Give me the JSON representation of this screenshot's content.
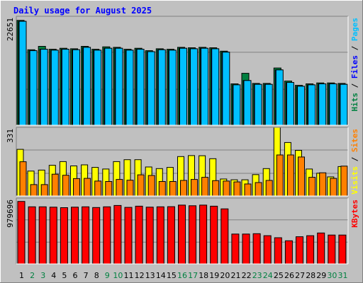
{
  "chart_data": {
    "type": "bar",
    "title": "Daily usage for August 2025",
    "categories": [
      "1",
      "2",
      "3",
      "4",
      "5",
      "6",
      "7",
      "8",
      "9",
      "10",
      "11",
      "12",
      "13",
      "14",
      "15",
      "16",
      "17",
      "18",
      "19",
      "20",
      "21",
      "22",
      "23",
      "24",
      "25",
      "26",
      "27",
      "28",
      "29",
      "30",
      "31"
    ],
    "weekend_days": [
      "2",
      "3",
      "9",
      "10",
      "16",
      "17",
      "23",
      "24",
      "30",
      "31"
    ],
    "panels": [
      {
        "id": "hits-files-pages",
        "max_label": "22651",
        "ylim": [
          0,
          22651
        ],
        "series": [
          {
            "name": "Hits",
            "color": "#008040",
            "values": [
              21800,
              15700,
              16400,
              15800,
              16000,
              15900,
              16400,
              15800,
              16300,
              16200,
              15800,
              16000,
              15500,
              15900,
              15800,
              16200,
              16100,
              16200,
              16100,
              15400,
              8600,
              10800,
              8700,
              8700,
              11900,
              9200,
              8300,
              8600,
              8800,
              8800,
              8700
            ]
          },
          {
            "name": "Files",
            "color": "#0000ff",
            "values": [
              21600,
              15500,
              15800,
              15600,
              15800,
              15700,
              16200,
              15600,
              16000,
              16000,
              15600,
              15800,
              15300,
              15700,
              15600,
              16000,
              15900,
              16000,
              15900,
              15200,
              8400,
              9300,
              8500,
              8500,
              11500,
              8900,
              8100,
              8400,
              8600,
              8600,
              8500
            ]
          },
          {
            "name": "Pages",
            "color": "#00c0ff",
            "values": [
              21600,
              15500,
              15800,
              15600,
              15800,
              15700,
              16200,
              15600,
              16000,
              16000,
              15600,
              15800,
              15300,
              15700,
              15600,
              16000,
              15900,
              16000,
              15900,
              15200,
              8400,
              9300,
              8500,
              8500,
              11500,
              8900,
              8100,
              8400,
              8600,
              8600,
              8500
            ]
          }
        ]
      },
      {
        "id": "visits-sites",
        "max_label": "331",
        "ylim": [
          0,
          331
        ],
        "series": [
          {
            "name": "Visits",
            "color": "#ffff00",
            "values": [
              225,
              120,
              125,
              148,
              166,
              145,
              150,
              138,
              130,
              166,
              175,
              175,
              140,
              132,
              138,
              190,
              195,
              194,
              180,
              82,
              78,
              78,
              103,
              132,
              331,
              258,
              220,
              130,
              110,
              92,
              142
            ]
          },
          {
            "name": "Sites",
            "color": "#ff8000",
            "values": [
              165,
              55,
              55,
              105,
              100,
              84,
              85,
              72,
              70,
              80,
              76,
              102,
              99,
              70,
              70,
              75,
              80,
              90,
              74,
              72,
              68,
              58,
              65,
              75,
              198,
              198,
              188,
              90,
              112,
              85,
              144
            ]
          }
        ]
      },
      {
        "id": "kbytes",
        "max_label": "979696",
        "ylim": [
          0,
          979696
        ],
        "series": [
          {
            "name": "KBytes",
            "color": "#ff0000",
            "values": [
              930000,
              850000,
              850000,
              845000,
              838000,
              845000,
              850000,
              840000,
              850000,
              870000,
              842000,
              860000,
              845000,
              850000,
              852000,
              875000,
              866000,
              875000,
              860000,
              820000,
              445000,
              445000,
              450000,
              420000,
              390000,
              345000,
              405000,
              420000,
              460000,
              430000,
              430000
            ]
          }
        ]
      }
    ],
    "legend_placement": "right"
  }
}
